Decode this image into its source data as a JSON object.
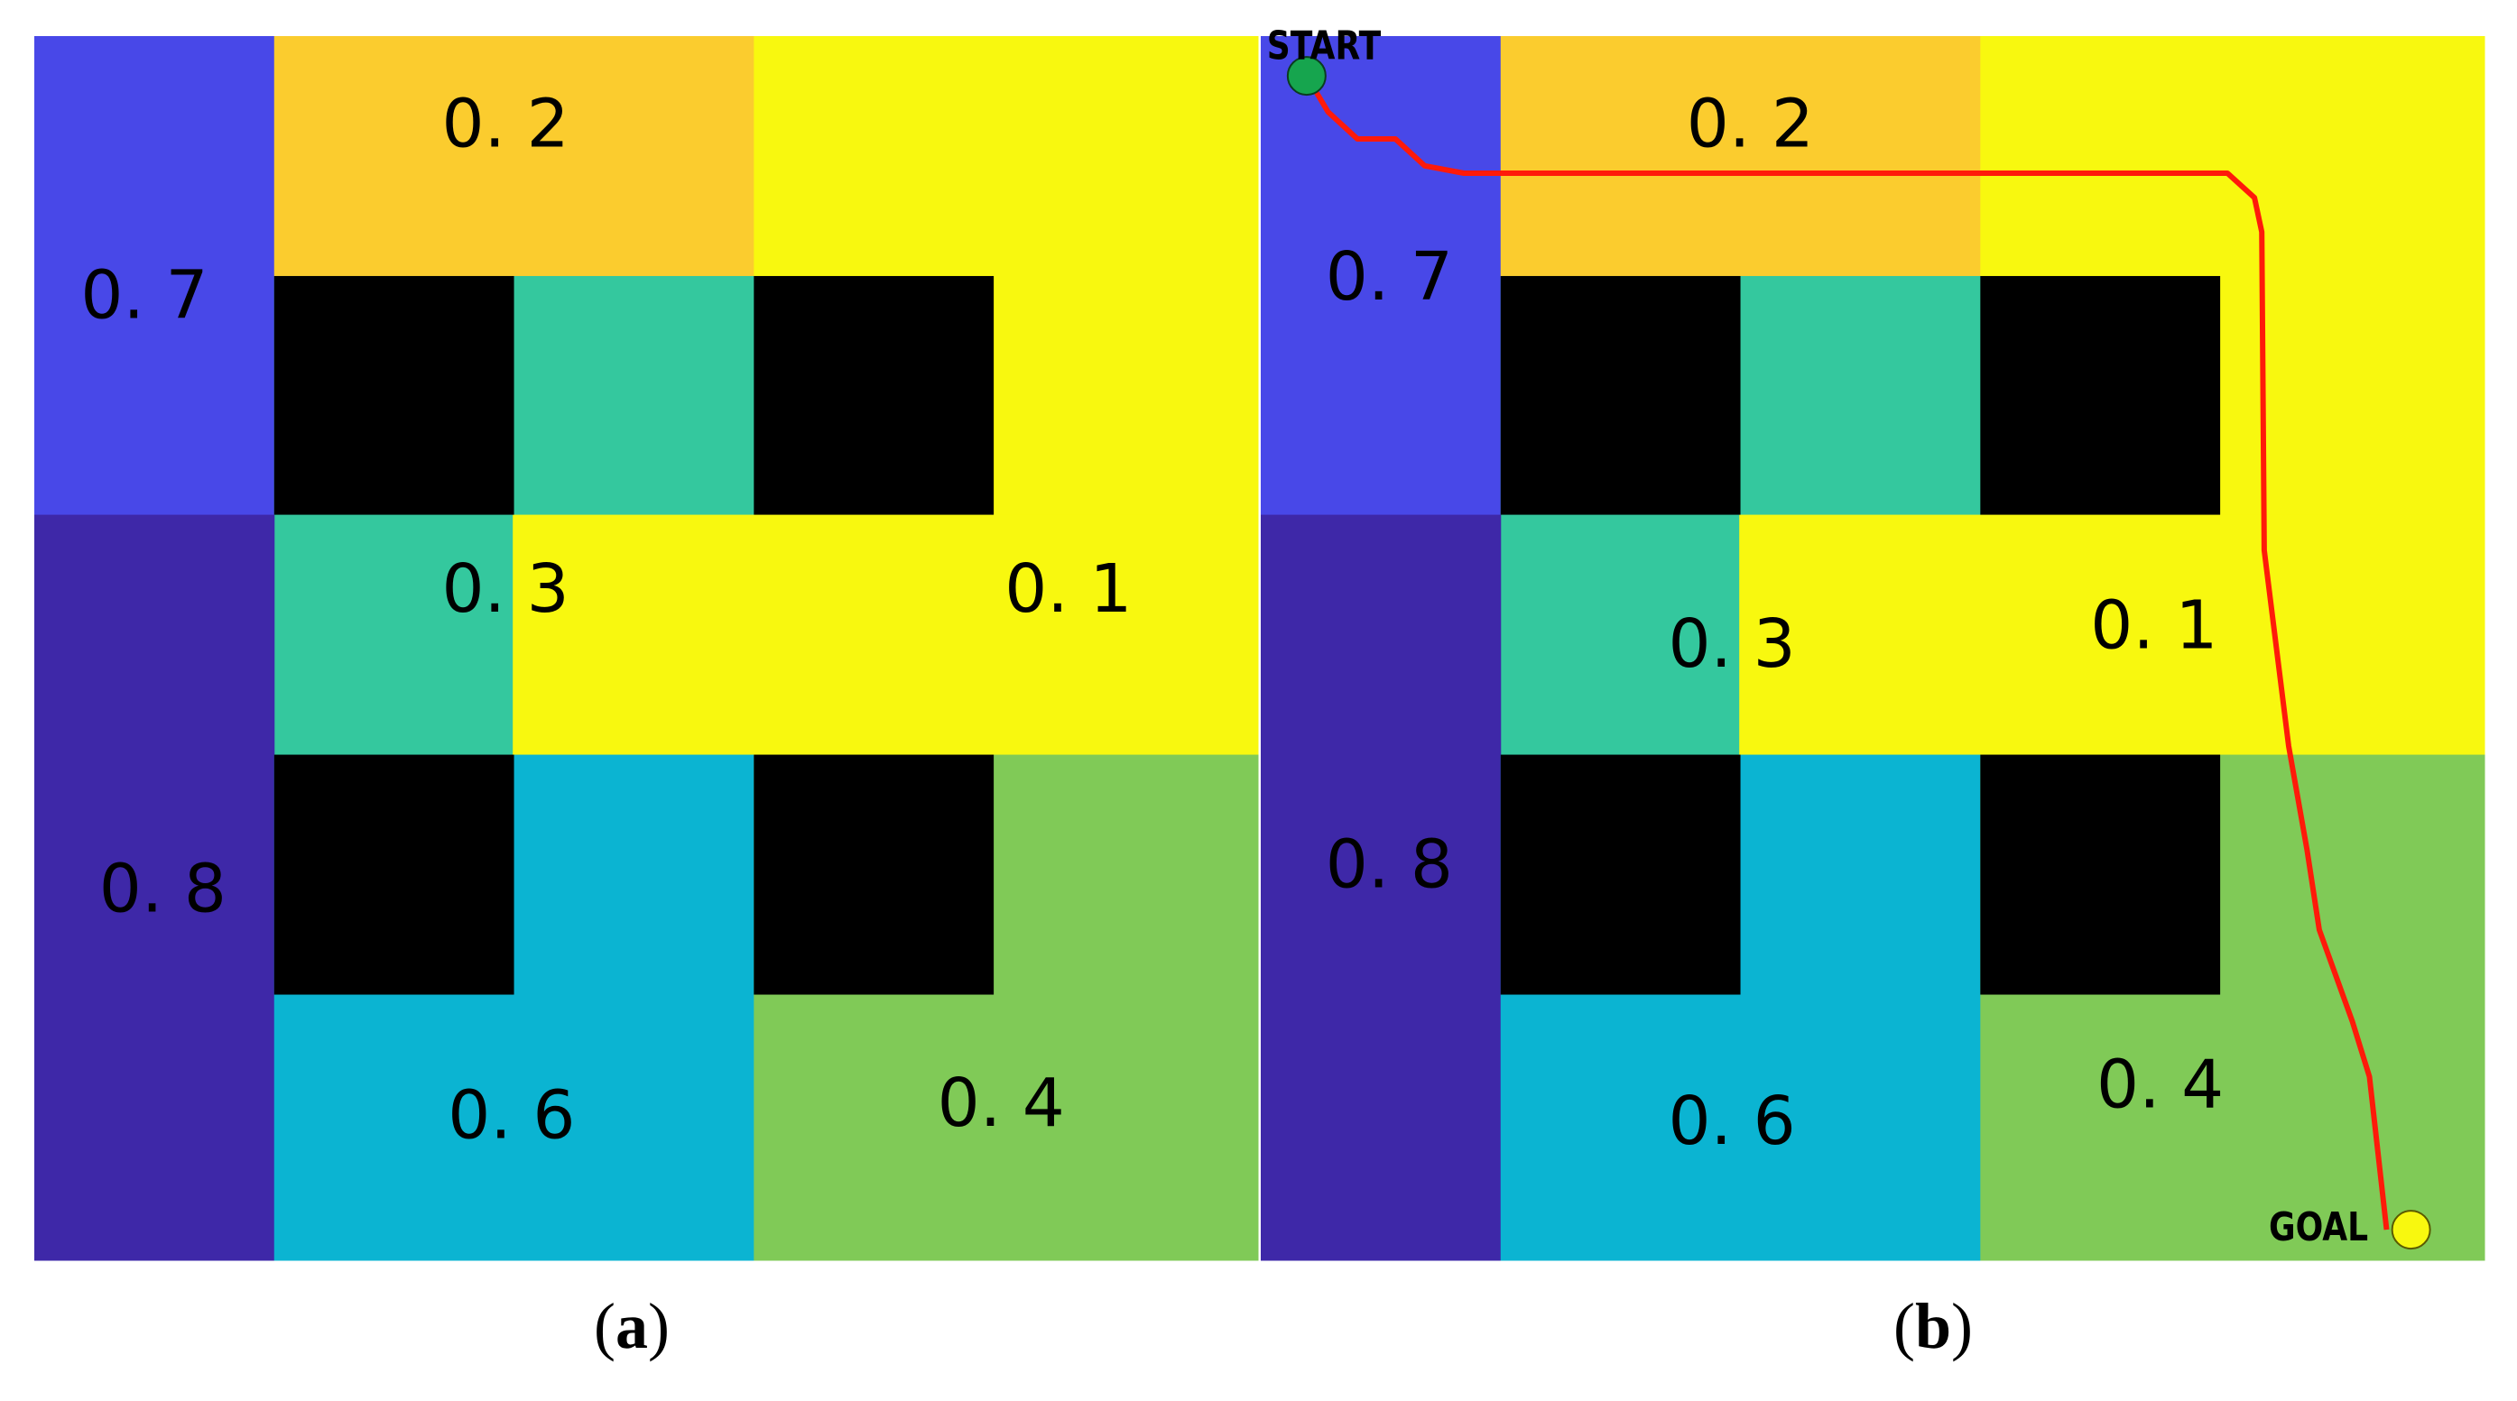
{
  "colors": {
    "blue": "#4848E8",
    "orange": "#FBCC2E",
    "yellow": "#F8F80F",
    "teal": "#34C89E",
    "indigo": "#3E28A8",
    "cyan": "#0BB4D2",
    "green": "#80CA57",
    "obstacle": "#000000",
    "path": "#FF1A0A",
    "start_marker": "#16A54E",
    "goal_marker": "#F8F80F"
  },
  "panels": [
    {
      "caption": {
        "open": "(",
        "letter": "a",
        "close": ")"
      },
      "regions": [
        {
          "id": "r07",
          "label": "0. 7",
          "color": "blue"
        },
        {
          "id": "r02",
          "label": "0. 2",
          "color": "orange"
        },
        {
          "id": "r-top-yellow",
          "label": "",
          "color": "yellow"
        },
        {
          "id": "r03",
          "label": "0. 3",
          "color": "teal"
        },
        {
          "id": "r01",
          "label": "0. 1",
          "color": "yellow"
        },
        {
          "id": "r08",
          "label": "0. 8",
          "color": "indigo"
        },
        {
          "id": "r06",
          "label": "0. 6",
          "color": "cyan"
        },
        {
          "id": "r04",
          "label": "0. 4",
          "color": "green"
        }
      ]
    },
    {
      "caption": {
        "open": "(",
        "letter": "b",
        "close": ")"
      },
      "regions": [
        {
          "id": "r07",
          "label": "0. 7",
          "color": "blue"
        },
        {
          "id": "r02",
          "label": "0. 2",
          "color": "orange"
        },
        {
          "id": "r-top-yellow",
          "label": "",
          "color": "yellow"
        },
        {
          "id": "r03",
          "label": "0. 3",
          "color": "teal"
        },
        {
          "id": "r01",
          "label": "0. 1",
          "color": "yellow"
        },
        {
          "id": "r08",
          "label": "0. 8",
          "color": "indigo"
        },
        {
          "id": "r06",
          "label": "0. 6",
          "color": "cyan"
        },
        {
          "id": "r04",
          "label": "0. 4",
          "color": "green"
        }
      ],
      "start_label": "START",
      "goal_label": "GOAL"
    }
  ]
}
